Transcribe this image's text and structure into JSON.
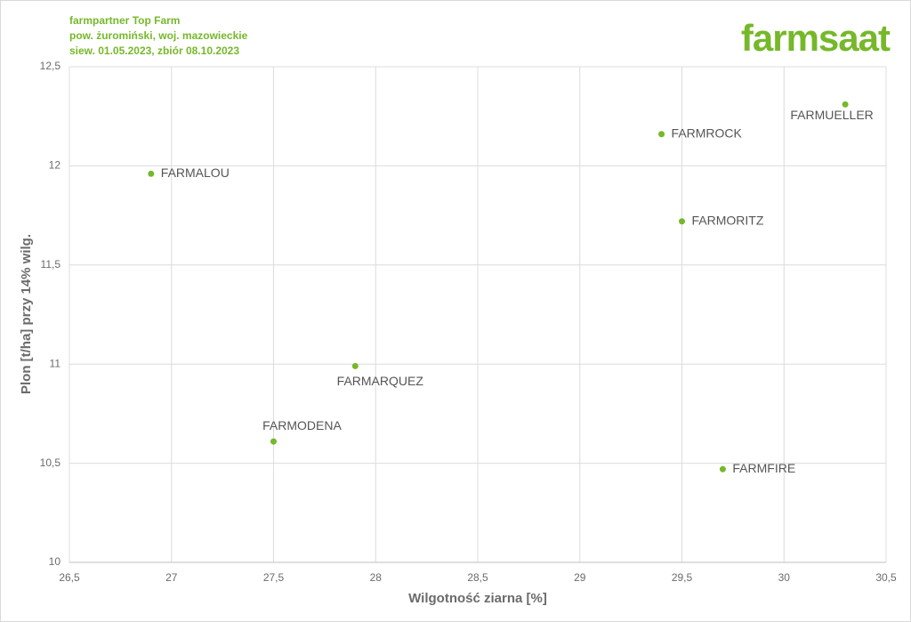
{
  "chart_data": {
    "type": "scatter",
    "header": [
      "farmpartner Top Farm",
      "pow. żuromiński, woj. mazowieckie",
      "siew. 01.05.2023,  zbiór 08.10.2023"
    ],
    "logo": "farmsaat",
    "x_label": "Wilgotność ziarna [%]",
    "y_label": "Plon [t/ha] przy 14% wilg.",
    "color": "#76b82a",
    "point_labels": [
      "FARMALOU",
      "FARMROCK",
      "FARMUELLER",
      "FARMORITZ",
      "FARMARQUEZ",
      "FARMODENA",
      "FARMFIRE"
    ],
    "x": [
      26.9,
      29.4,
      30.3,
      29.5,
      27.9,
      27.5,
      29.7
    ],
    "values": [
      11.96,
      12.16,
      12.31,
      11.72,
      10.99,
      10.61,
      10.47
    ],
    "xlim": [
      26.5,
      30.5
    ],
    "xticks": [
      {
        "value": 26.5,
        "label": "26,5"
      },
      27,
      {
        "value": 27.5,
        "label": "27,5"
      },
      28,
      {
        "value": 28.5,
        "label": "28,5"
      },
      29,
      {
        "value": 29.5,
        "label": "29,5"
      },
      30,
      {
        "value": 30.5,
        "label": "30,5"
      }
    ],
    "ylim": [
      10,
      12.5
    ],
    "yticks": [
      10,
      {
        "value": 10.5,
        "label": "10,5"
      },
      11,
      {
        "value": 11.5,
        "label": "11,5"
      },
      12,
      {
        "value": 12.5,
        "label": "12,5"
      }
    ],
    "grid": true
  }
}
